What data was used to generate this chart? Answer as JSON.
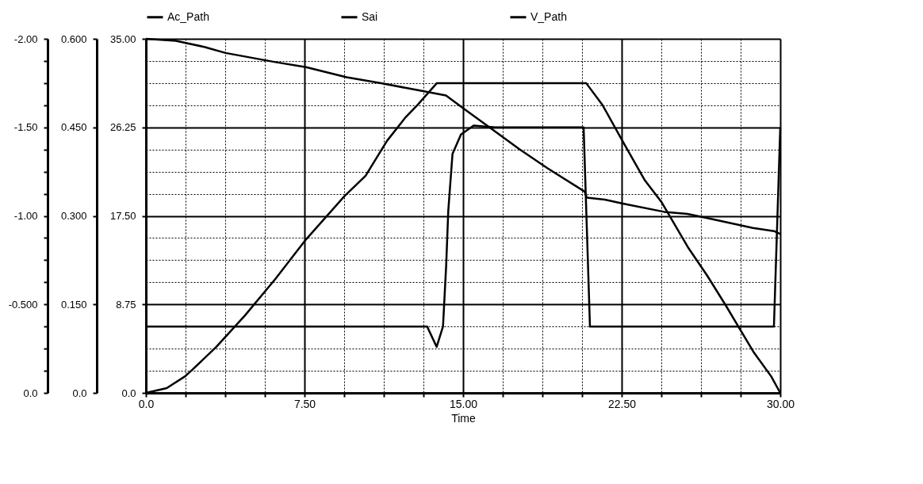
{
  "chart_data": {
    "type": "line",
    "xlabel": "Time",
    "xlim": [
      0,
      30
    ],
    "xticks": [
      {
        "value": 0,
        "label": "0.0"
      },
      {
        "value": 1.875,
        "label": null
      },
      {
        "value": 3.75,
        "label": null
      },
      {
        "value": 5.625,
        "label": null
      },
      {
        "value": 7.5,
        "label": "7.50"
      },
      {
        "value": 9.375,
        "label": null
      },
      {
        "value": 11.25,
        "label": null
      },
      {
        "value": 13.125,
        "label": null
      },
      {
        "value": 15,
        "label": "15.00"
      },
      {
        "value": 16.875,
        "label": null
      },
      {
        "value": 18.75,
        "label": null
      },
      {
        "value": 20.625,
        "label": null
      },
      {
        "value": 22.5,
        "label": "22.50"
      },
      {
        "value": 24.375,
        "label": null
      },
      {
        "value": 26.25,
        "label": null
      },
      {
        "value": 28.125,
        "label": null
      },
      {
        "value": 30,
        "label": "30.00"
      }
    ],
    "ylim": [
      0,
      -2
    ],
    "yticks": [
      {
        "value": 0,
        "label": "0.0"
      },
      {
        "value": -0.125,
        "label": null
      },
      {
        "value": -0.25,
        "label": null
      },
      {
        "value": -0.375,
        "label": null
      },
      {
        "value": -0.5,
        "label": "-0.500"
      },
      {
        "value": -0.625,
        "label": null
      },
      {
        "value": -0.75,
        "label": null
      },
      {
        "value": -0.875,
        "label": null
      },
      {
        "value": -1,
        "label": "-1.00"
      },
      {
        "value": -1.125,
        "label": null
      },
      {
        "value": -1.25,
        "label": null
      },
      {
        "value": -1.375,
        "label": null
      },
      {
        "value": -1.5,
        "label": "-1.50"
      },
      {
        "value": -1.625,
        "label": null
      },
      {
        "value": -1.75,
        "label": null
      },
      {
        "value": -1.875,
        "label": null
      },
      {
        "value": -2,
        "label": "-2.00"
      }
    ],
    "y2lim": [
      0,
      0.6
    ],
    "y2ticks": [
      {
        "value": 0,
        "label": "0.0"
      },
      {
        "value": 0.15,
        "label": "0.150"
      },
      {
        "value": 0.3,
        "label": "0.300"
      },
      {
        "value": 0.45,
        "label": "0.450"
      },
      {
        "value": 0.6,
        "label": "0.600"
      }
    ],
    "y3lim": [
      0,
      35
    ],
    "y3ticks": [
      {
        "value": 0,
        "label": "0.0"
      },
      8.75,
      {
        "value": 17.5,
        "label": "17.50"
      },
      26.25,
      {
        "value": 35,
        "label": "35.00"
      }
    ],
    "grid": true,
    "legend": "top left",
    "series": [
      {
        "name": "Ac_Path",
        "color": "#000000",
        "x": [
          0,
          13.3,
          13.75,
          14.05,
          14.2,
          14.3,
          14.5,
          14.9,
          15.5,
          16.5,
          20.7,
          21.0,
          29.7,
          30
        ],
        "values": [
          -0.375,
          -0.375,
          -0.26,
          -0.375,
          -0.72,
          -1.03,
          -1.35,
          -1.46,
          -1.51,
          -1.5,
          -1.5,
          -0.375,
          -0.375,
          -1.5
        ]
      },
      {
        "name": "Sai",
        "color": "#000000",
        "axis": "y2",
        "x": [
          0,
          0.98,
          1.85,
          2.19,
          3.33,
          4.68,
          6.12,
          7.57,
          9.38,
          10.39,
          11.4,
          12.28,
          12.85,
          13.76,
          20.82,
          21.59,
          22.6,
          23.6,
          24.39,
          25.63,
          26.54,
          27.41,
          28.76,
          29.57,
          30
        ],
        "values": [
          0,
          0.008,
          0.028,
          0.039,
          0.078,
          0.131,
          0.193,
          0.26,
          0.333,
          0.368,
          0.427,
          0.467,
          0.488,
          0.525,
          0.525,
          0.488,
          0.423,
          0.36,
          0.323,
          0.247,
          0.199,
          0.149,
          0.068,
          0.028,
          0
        ]
      },
      {
        "name": "V_Path",
        "color": "#000000",
        "axis": "y3",
        "x": [
          0,
          1.41,
          2.76,
          3.77,
          6.12,
          7.57,
          9.49,
          11.17,
          12.41,
          14.19,
          15.1,
          16.21,
          17.66,
          19.0,
          20.75,
          20.85,
          21.7,
          22.6,
          24.5,
          25.6,
          26.5,
          28.7,
          29.7,
          30
        ],
        "values": [
          35,
          34.8,
          34.2,
          33.6,
          32.7,
          32.2,
          31.2,
          30.6,
          30.1,
          29.4,
          28.0,
          26.3,
          24.1,
          22.2,
          19.9,
          19.3,
          19.1,
          18.7,
          17.9,
          17.7,
          17.3,
          16.3,
          16.0,
          15.7
        ]
      }
    ]
  }
}
